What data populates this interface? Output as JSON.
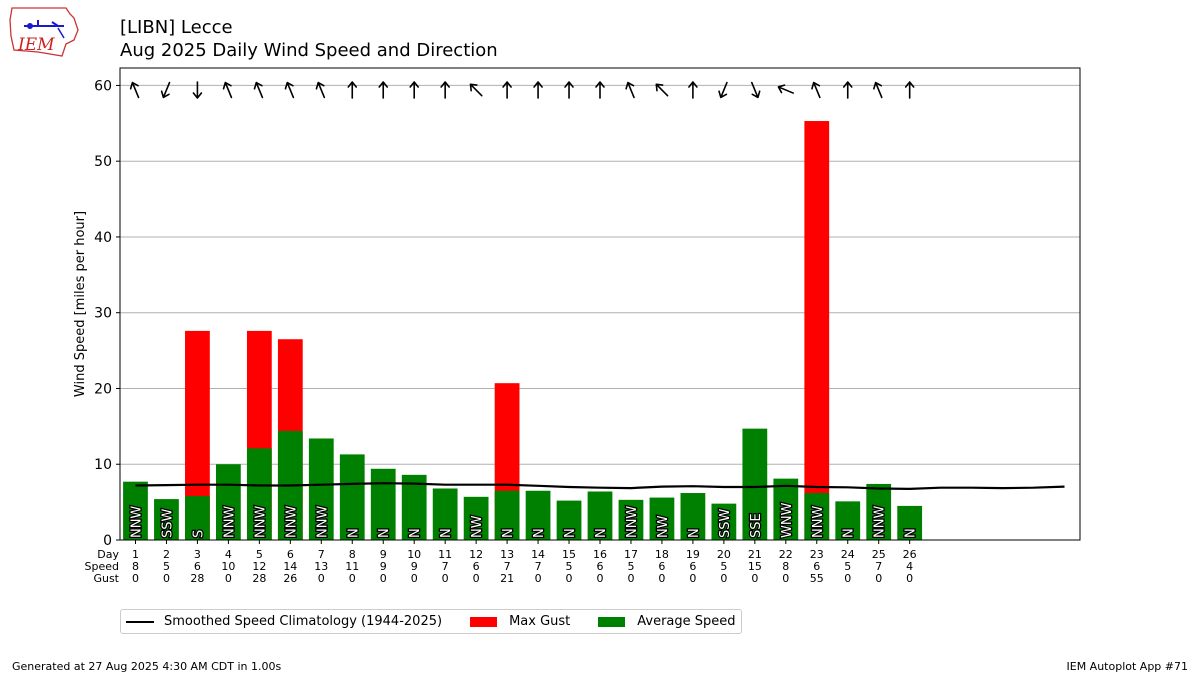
{
  "header": {
    "logo_text": "IEM",
    "title_line1": "[LIBN] Lecce",
    "title_line2": "Aug 2025 Daily Wind Speed and Direction"
  },
  "footer": {
    "generated": "Generated at 27 Aug 2025 4:30 AM CDT in 1.00s",
    "app": "IEM Autoplot App #71"
  },
  "legend": {
    "climatology": "Smoothed Speed Climatology (1944-2025)",
    "gust": "Max Gust",
    "average": "Average Speed"
  },
  "colors": {
    "average": "#008000",
    "gust": "#ff0000",
    "climatology": "#000000",
    "grid": "#b0b0b0"
  },
  "chart_data": {
    "type": "bar",
    "ylabel": "Wind Speed [miles per hour]",
    "ylim": [
      0,
      62.3
    ],
    "yticks": [
      0,
      10,
      20,
      30,
      40,
      50,
      60
    ],
    "xlim": [
      0.5,
      31.5
    ],
    "grid": "horizontal",
    "legend_position": "below-left",
    "row_labels": [
      "Day",
      "Speed",
      "Gust"
    ],
    "days": [
      1,
      2,
      3,
      4,
      5,
      6,
      7,
      8,
      9,
      10,
      11,
      12,
      13,
      14,
      15,
      16,
      17,
      18,
      19,
      20,
      21,
      22,
      23,
      24,
      25,
      26
    ],
    "average_speed": [
      7.7,
      5.4,
      5.8,
      10.0,
      12.1,
      14.4,
      13.4,
      11.3,
      9.4,
      8.6,
      6.8,
      5.7,
      6.5,
      6.5,
      5.2,
      6.4,
      5.3,
      5.6,
      6.2,
      4.8,
      14.7,
      8.1,
      6.2,
      5.1,
      7.4,
      4.5
    ],
    "speed_labels": [
      "8",
      "5",
      "6",
      "10",
      "12",
      "14",
      "13",
      "11",
      "9",
      "9",
      "7",
      "6",
      "7",
      "7",
      "5",
      "6",
      "5",
      "6",
      "6",
      "5",
      "15",
      "8",
      "6",
      "5",
      "7",
      "4"
    ],
    "max_gust": [
      0,
      0,
      27.6,
      0,
      27.6,
      26.5,
      0,
      0,
      0,
      0,
      0,
      0,
      20.7,
      0,
      0,
      0,
      0,
      0,
      0,
      0,
      0,
      0,
      55.3,
      0,
      0,
      0
    ],
    "gust_labels": [
      "0",
      "0",
      "28",
      "0",
      "28",
      "26",
      "0",
      "0",
      "0",
      "0",
      "0",
      "0",
      "21",
      "0",
      "0",
      "0",
      "0",
      "0",
      "0",
      "0",
      "0",
      "0",
      "55",
      "0",
      "0",
      "0"
    ],
    "direction": [
      "NNW",
      "SSW",
      "S",
      "NNW",
      "NNW",
      "NNW",
      "NNW",
      "N",
      "N",
      "N",
      "N",
      "NW",
      "N",
      "N",
      "N",
      "N",
      "NNW",
      "NW",
      "N",
      "SSW",
      "SSE",
      "WNW",
      "NNW",
      "N",
      "NNW",
      "N"
    ],
    "climatology_x": [
      1,
      2,
      3,
      4,
      5,
      6,
      7,
      8,
      9,
      10,
      11,
      12,
      13,
      14,
      15,
      16,
      17,
      18,
      19,
      20,
      21,
      22,
      23,
      24,
      25,
      26,
      27,
      28,
      29,
      30,
      31
    ],
    "climatology_y": [
      7.2,
      7.25,
      7.3,
      7.3,
      7.2,
      7.2,
      7.3,
      7.4,
      7.5,
      7.45,
      7.3,
      7.3,
      7.3,
      7.15,
      7.0,
      6.9,
      6.85,
      7.05,
      7.1,
      7.0,
      7.0,
      7.15,
      7.0,
      6.95,
      6.8,
      6.75,
      6.9,
      6.9,
      6.85,
      6.9,
      7.05
    ]
  }
}
